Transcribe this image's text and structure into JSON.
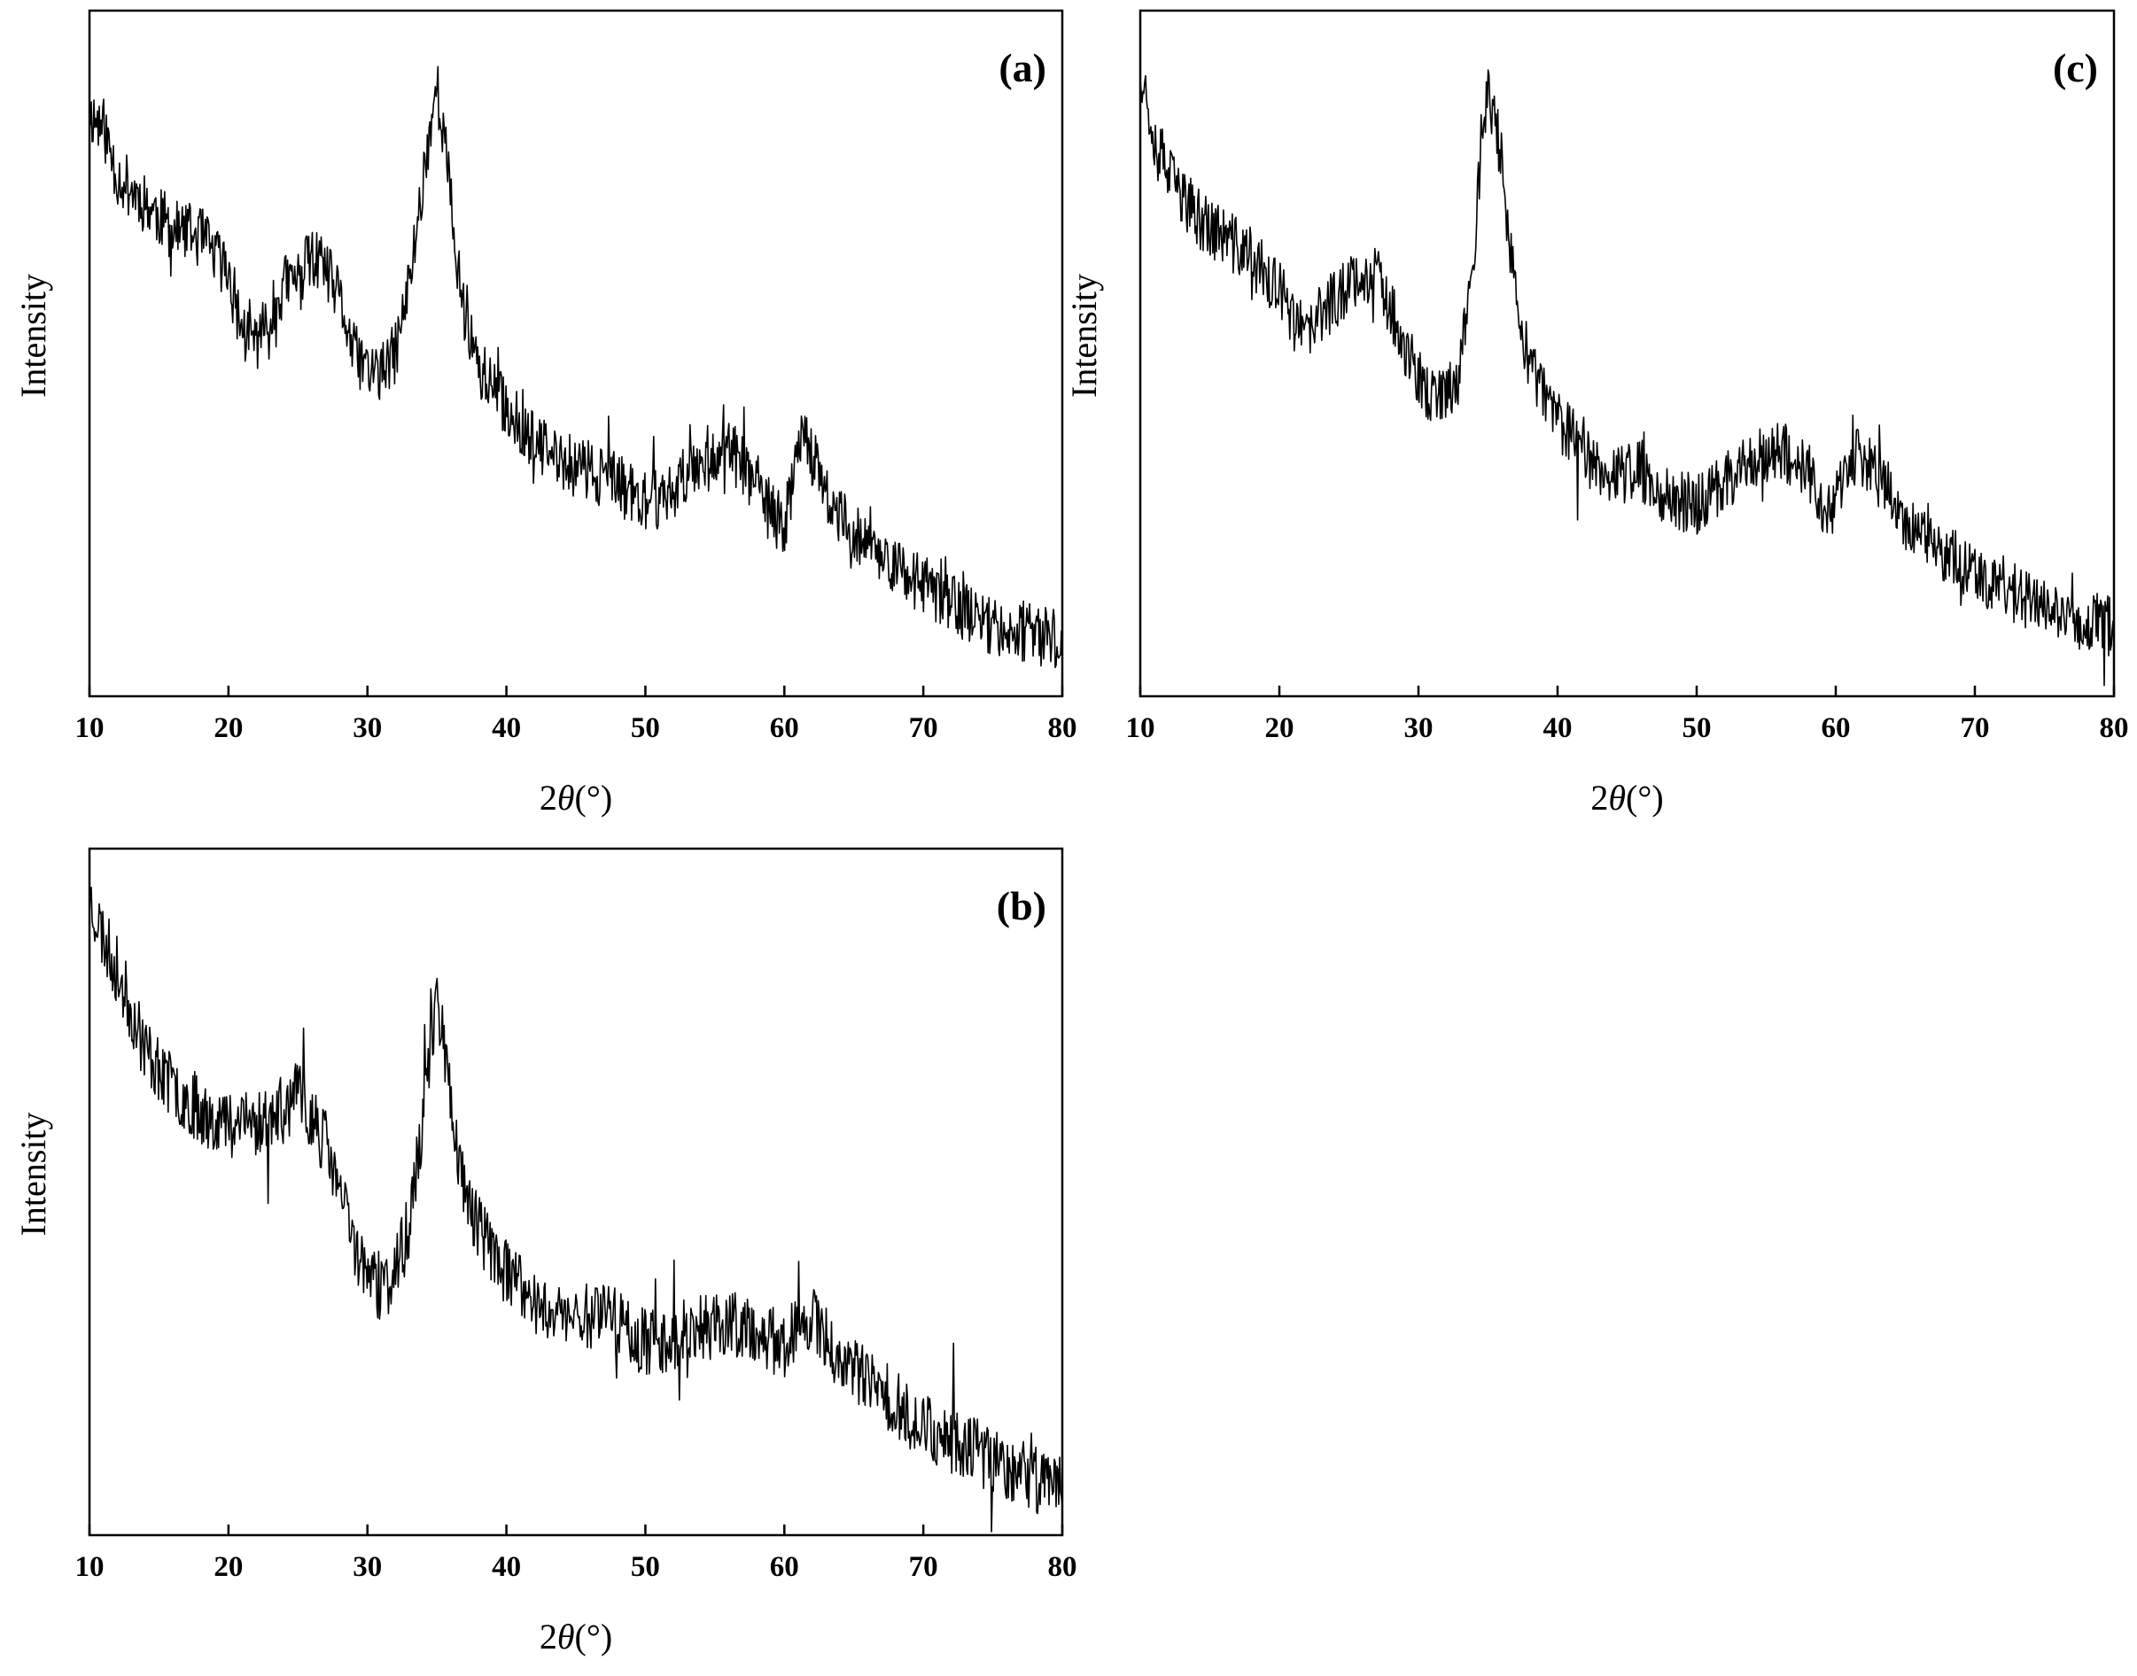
{
  "chart_data": [
    {
      "type": "line",
      "panel_label": "(a)",
      "xlabel": "2θ(°)",
      "ylabel": "Intensity",
      "xlim": [
        10,
        80
      ],
      "ylim": [
        0,
        100
      ],
      "xticks": [
        "10",
        "20",
        "30",
        "40",
        "50",
        "60",
        "70",
        "80"
      ],
      "yticks": [],
      "grid": false,
      "legend": "none",
      "noise": 4.5,
      "seed": 11,
      "x": [
        10,
        11,
        12,
        14,
        16,
        18,
        20,
        21,
        22,
        23,
        24,
        25,
        26,
        27,
        28,
        29,
        30,
        31,
        32,
        33,
        33.8,
        34.5,
        35,
        35.5,
        36,
        36.5,
        37,
        38,
        40,
        42,
        44,
        46,
        48,
        50,
        52,
        54,
        56,
        58,
        59,
        60,
        60.8,
        61.3,
        62,
        63,
        64,
        66,
        67.5,
        70,
        72,
        74,
        76,
        78,
        80
      ],
      "y": [
        85,
        83,
        76,
        72,
        68,
        67,
        62,
        53,
        52,
        55,
        60,
        61,
        64,
        62,
        58,
        50,
        48,
        47,
        50,
        60,
        72,
        83,
        89,
        82,
        72,
        62,
        56,
        48,
        42,
        37,
        34,
        33,
        31,
        28,
        30,
        35,
        36,
        31,
        27,
        25,
        33,
        41,
        35,
        29,
        26,
        22,
        20,
        16,
        14,
        11,
        10,
        9,
        8
      ]
    },
    {
      "type": "line",
      "panel_label": "(b)",
      "xlabel": "2θ(°)",
      "ylabel": "Intensity",
      "xlim": [
        10,
        80
      ],
      "ylim": [
        0,
        100
      ],
      "xticks": [
        "10",
        "20",
        "30",
        "40",
        "50",
        "60",
        "70",
        "80"
      ],
      "yticks": [],
      "grid": false,
      "legend": "none",
      "noise": 5,
      "seed": 23,
      "x": [
        10,
        11,
        12,
        14,
        16,
        18,
        20,
        22,
        24,
        25,
        26,
        27,
        28,
        29,
        30,
        31,
        32,
        33,
        34,
        34.6,
        35,
        35.5,
        36,
        36.5,
        37,
        38,
        40,
        42,
        44,
        46,
        47,
        48,
        50,
        52,
        54,
        56,
        58,
        60,
        61.5,
        62.5,
        64,
        66,
        68,
        70,
        72,
        74,
        76,
        78,
        80
      ],
      "y": [
        93,
        87,
        82,
        71,
        65,
        62,
        60,
        60,
        62,
        64,
        61,
        57,
        50,
        43,
        38,
        36,
        38,
        45,
        60,
        73,
        78,
        72,
        63,
        56,
        50,
        45,
        38,
        34,
        32,
        32,
        34,
        31,
        28,
        29,
        30,
        31,
        29,
        28,
        32,
        30,
        26,
        22,
        19,
        16,
        14,
        12,
        10,
        8,
        7
      ]
    },
    {
      "type": "line",
      "panel_label": "(c)",
      "xlabel": "2θ(°)",
      "ylabel": "Intensity",
      "xlim": [
        10,
        80
      ],
      "ylim": [
        0,
        100
      ],
      "xticks": [
        "10",
        "20",
        "30",
        "40",
        "50",
        "60",
        "70",
        "80"
      ],
      "yticks": [],
      "grid": false,
      "legend": "none",
      "noise": 4.5,
      "seed": 37,
      "x": [
        10,
        11,
        12,
        14,
        16,
        18,
        20,
        21,
        22,
        23,
        24,
        25,
        26,
        27,
        28,
        29,
        30,
        31,
        32,
        33,
        34,
        34.6,
        35,
        35.5,
        36,
        37,
        38,
        40,
        42,
        44,
        46,
        48,
        50,
        52,
        54,
        56,
        58,
        59,
        60,
        61,
        62,
        64,
        65,
        66,
        68,
        70,
        72,
        74,
        76,
        78,
        80
      ],
      "y": [
        92,
        82,
        76,
        70,
        67,
        64,
        59,
        55,
        52,
        56,
        58,
        60,
        62,
        61,
        57,
        51,
        46,
        43,
        44,
        48,
        66,
        82,
        88,
        84,
        78,
        57,
        48,
        40,
        36,
        32,
        33,
        29,
        28,
        31,
        35,
        36,
        33,
        28,
        28,
        35,
        34,
        30,
        25,
        23,
        21,
        18,
        16,
        14,
        12,
        11,
        10
      ]
    }
  ]
}
